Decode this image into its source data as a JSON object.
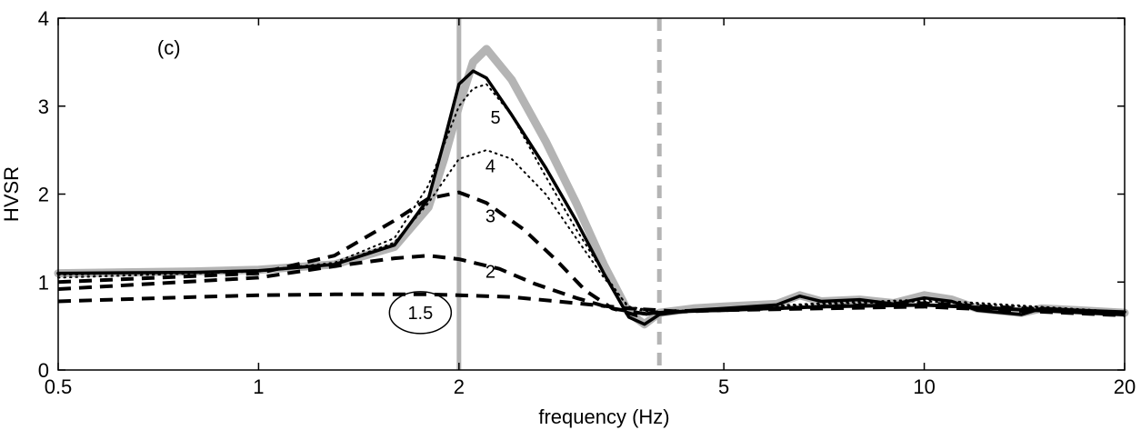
{
  "chart_data": {
    "type": "line",
    "panel_label": "(c)",
    "xlabel": "frequency (Hz)",
    "ylabel": "HVSR",
    "xscale": "log",
    "xlim": [
      0.5,
      20
    ],
    "ylim": [
      0,
      4
    ],
    "xticks": [
      0.5,
      1,
      2,
      5,
      10,
      20
    ],
    "xtick_labels": [
      "0.5",
      "1",
      "2",
      "5",
      "10",
      "20"
    ],
    "yticks": [
      0,
      1,
      2,
      3,
      4
    ],
    "ytick_labels": [
      "0",
      "1",
      "2",
      "3",
      "4"
    ],
    "grid": false,
    "reference_lines": [
      {
        "x": 2.0,
        "style": "solid",
        "color": "#b4b4b4"
      },
      {
        "x": 4.0,
        "style": "dashed",
        "color": "#b4b4b4"
      }
    ],
    "series": [
      {
        "style": "gray-thick",
        "color": "#b4b4b4",
        "x": [
          0.5,
          0.8,
          1.0,
          1.3,
          1.6,
          1.8,
          1.9,
          2.0,
          2.1,
          2.2,
          2.4,
          2.7,
          3.0,
          3.3,
          3.6,
          3.8,
          4.0,
          4.5,
          5.0,
          6.0,
          6.5,
          7.0,
          8.0,
          9.0,
          10.0,
          11.0,
          12.0,
          14.0,
          15.0,
          17.0,
          20.0
        ],
        "y": [
          1.1,
          1.12,
          1.14,
          1.2,
          1.4,
          1.85,
          2.4,
          3.0,
          3.5,
          3.65,
          3.3,
          2.6,
          1.9,
          1.2,
          0.65,
          0.52,
          0.65,
          0.7,
          0.72,
          0.75,
          0.85,
          0.78,
          0.8,
          0.76,
          0.85,
          0.8,
          0.7,
          0.65,
          0.7,
          0.68,
          0.65
        ]
      },
      {
        "style": "solid",
        "color": "#000000",
        "label": "",
        "x": [
          0.5,
          0.8,
          1.0,
          1.3,
          1.6,
          1.8,
          1.9,
          2.0,
          2.1,
          2.2,
          2.4,
          2.7,
          3.0,
          3.3,
          3.6,
          3.8,
          4.0,
          4.5,
          5.0,
          6.0,
          6.5,
          7.0,
          8.0,
          9.0,
          10.0,
          11.0,
          12.0,
          14.0,
          15.0,
          17.0,
          20.0
        ],
        "y": [
          1.1,
          1.11,
          1.13,
          1.2,
          1.42,
          1.95,
          2.6,
          3.25,
          3.4,
          3.32,
          2.9,
          2.3,
          1.7,
          1.1,
          0.6,
          0.52,
          0.63,
          0.68,
          0.7,
          0.74,
          0.84,
          0.78,
          0.8,
          0.75,
          0.82,
          0.78,
          0.68,
          0.63,
          0.7,
          0.68,
          0.66
        ]
      },
      {
        "style": "dotted",
        "color": "#000000",
        "label": "5",
        "x": [
          0.5,
          1.0,
          1.3,
          1.6,
          1.8,
          2.0,
          2.1,
          2.2,
          2.4,
          2.7,
          3.0,
          3.3,
          3.6,
          4.0,
          5.0,
          7.0,
          10.0,
          20.0
        ],
        "y": [
          1.08,
          1.13,
          1.22,
          1.5,
          2.1,
          3.0,
          3.2,
          3.25,
          2.9,
          2.2,
          1.6,
          1.1,
          0.7,
          0.65,
          0.7,
          0.76,
          0.8,
          0.66
        ]
      },
      {
        "style": "dotted",
        "color": "#000000",
        "label": "4",
        "x": [
          0.5,
          1.0,
          1.3,
          1.6,
          1.8,
          2.0,
          2.2,
          2.4,
          2.7,
          3.0,
          3.3,
          3.6,
          4.0,
          5.0,
          7.0,
          10.0,
          20.0
        ],
        "y": [
          1.05,
          1.12,
          1.2,
          1.45,
          1.9,
          2.4,
          2.5,
          2.4,
          2.0,
          1.5,
          1.05,
          0.72,
          0.66,
          0.7,
          0.75,
          0.78,
          0.66
        ]
      },
      {
        "style": "dashed",
        "color": "#000000",
        "label": "3",
        "x": [
          0.5,
          1.0,
          1.3,
          1.6,
          1.8,
          2.0,
          2.2,
          2.5,
          2.8,
          3.1,
          3.4,
          3.7,
          4.0,
          5.0,
          7.0,
          10.0,
          20.0
        ],
        "y": [
          1.0,
          1.1,
          1.3,
          1.7,
          1.95,
          2.02,
          1.9,
          1.6,
          1.25,
          0.9,
          0.7,
          0.62,
          0.66,
          0.68,
          0.72,
          0.76,
          0.64
        ]
      },
      {
        "style": "dashed",
        "color": "#000000",
        "label": "2",
        "x": [
          0.5,
          1.0,
          1.3,
          1.6,
          1.8,
          2.0,
          2.3,
          2.6,
          3.0,
          3.4,
          3.8,
          4.2,
          5.0,
          7.0,
          10.0,
          20.0
        ],
        "y": [
          0.92,
          1.05,
          1.18,
          1.27,
          1.3,
          1.26,
          1.15,
          0.98,
          0.82,
          0.7,
          0.64,
          0.66,
          0.68,
          0.72,
          0.74,
          0.63
        ]
      },
      {
        "style": "dashed",
        "color": "#000000",
        "label": "1.5",
        "x": [
          0.5,
          0.8,
          1.0,
          1.3,
          1.6,
          1.8,
          2.0,
          2.4,
          3.0,
          3.6,
          4.2,
          5.0,
          7.0,
          10.0,
          20.0
        ],
        "y": [
          0.78,
          0.83,
          0.85,
          0.86,
          0.86,
          0.86,
          0.85,
          0.83,
          0.76,
          0.7,
          0.67,
          0.68,
          0.7,
          0.72,
          0.62
        ]
      }
    ],
    "curve_labels": [
      {
        "text": "5",
        "x": 2.27,
        "y": 2.8
      },
      {
        "text": "4",
        "x": 2.23,
        "y": 2.25
      },
      {
        "text": "3",
        "x": 2.23,
        "y": 1.68
      },
      {
        "text": "2",
        "x": 2.23,
        "y": 1.05
      },
      {
        "text": "1.5",
        "x": 1.75,
        "y": 0.58,
        "circled": true
      }
    ]
  }
}
